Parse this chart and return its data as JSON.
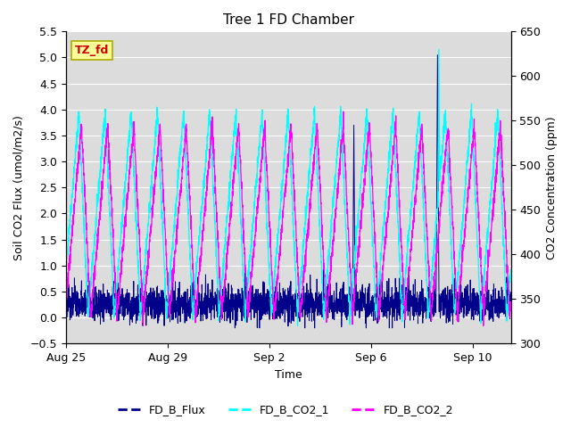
{
  "title": "Tree 1 FD Chamber",
  "xlabel": "Time",
  "ylabel_left": "Soil CO2 Flux (umol/m2/s)",
  "ylabel_right": "CO2 Concentration (ppm)",
  "ylim_left": [
    -0.5,
    5.5
  ],
  "ylim_right": [
    300,
    650
  ],
  "yticks_left": [
    -0.5,
    0.0,
    0.5,
    1.0,
    1.5,
    2.0,
    2.5,
    3.0,
    3.5,
    4.0,
    4.5,
    5.0,
    5.5
  ],
  "yticks_right": [
    300,
    350,
    400,
    450,
    500,
    550,
    600,
    650
  ],
  "xtick_labels": [
    "Aug 25",
    "Aug 29",
    "Sep 2",
    "Sep 6",
    "Sep 10"
  ],
  "color_flux": "#00008B",
  "color_co2_1": "#00FFFF",
  "color_co2_2": "#FF00FF",
  "tz_label": "TZ_fd",
  "tz_bg": "#FFFF99",
  "tz_fg": "#CC0000",
  "tz_edge": "#AAAA00",
  "bg_color": "#DCDCDC",
  "legend_labels": [
    "FD_B_Flux",
    "FD_B_CO2_1",
    "FD_B_CO2_2"
  ],
  "n_days": 17,
  "n_points": 3000
}
